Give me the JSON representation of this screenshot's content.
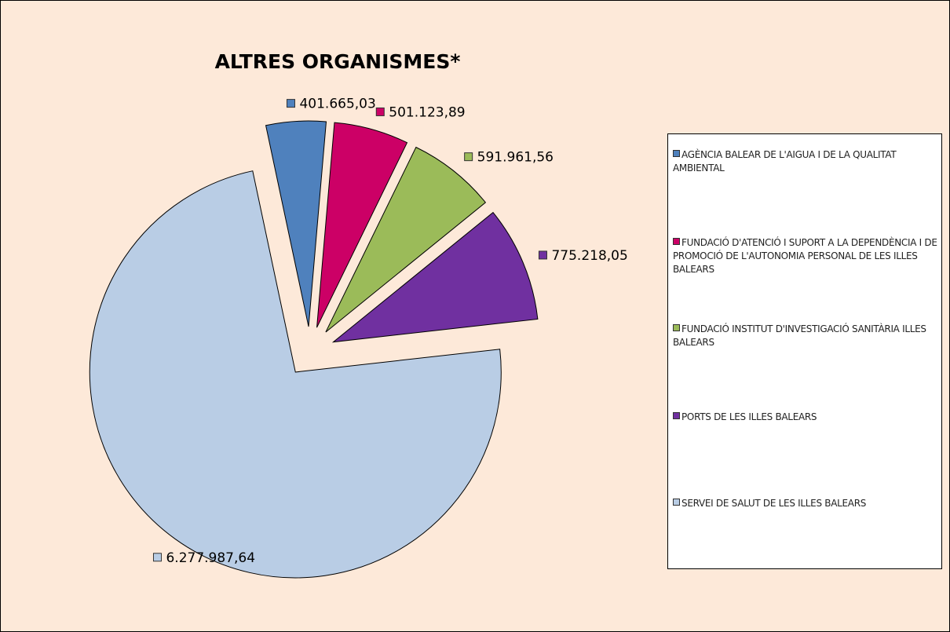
{
  "chart_data": {
    "type": "pie",
    "title": "ALTRES ORGANISMES*",
    "categories": [
      "AGÈNCIA BALEAR DE L'AIGUA I DE LA QUALITAT AMBIENTAL",
      "FUNDACIÓ D'ATENCIÓ I SUPORT A LA DEPENDÈNCIA I DE PROMOCIÓ DE L'AUTONOMIA PERSONAL DE LES ILLES BALEARS",
      "FUNDACIÓ INSTITUT D'INVESTIGACIÓ SANITÀRIA ILLES BALEARS",
      "PORTS DE LES ILLES BALEARS",
      "SERVEI DE SALUT DE LES ILLES BALEARS"
    ],
    "values": [
      401665.03,
      501123.89,
      591961.56,
      775218.05,
      6277987.64
    ],
    "value_labels": [
      "401.665,03",
      "501.123,89",
      "591.961,56",
      "775.218,05",
      "6.277.987,64"
    ],
    "colors": [
      "#4f81bd",
      "#cc0066",
      "#9bbb59",
      "#7030a0",
      "#b9cde5"
    ],
    "legend": "right"
  }
}
